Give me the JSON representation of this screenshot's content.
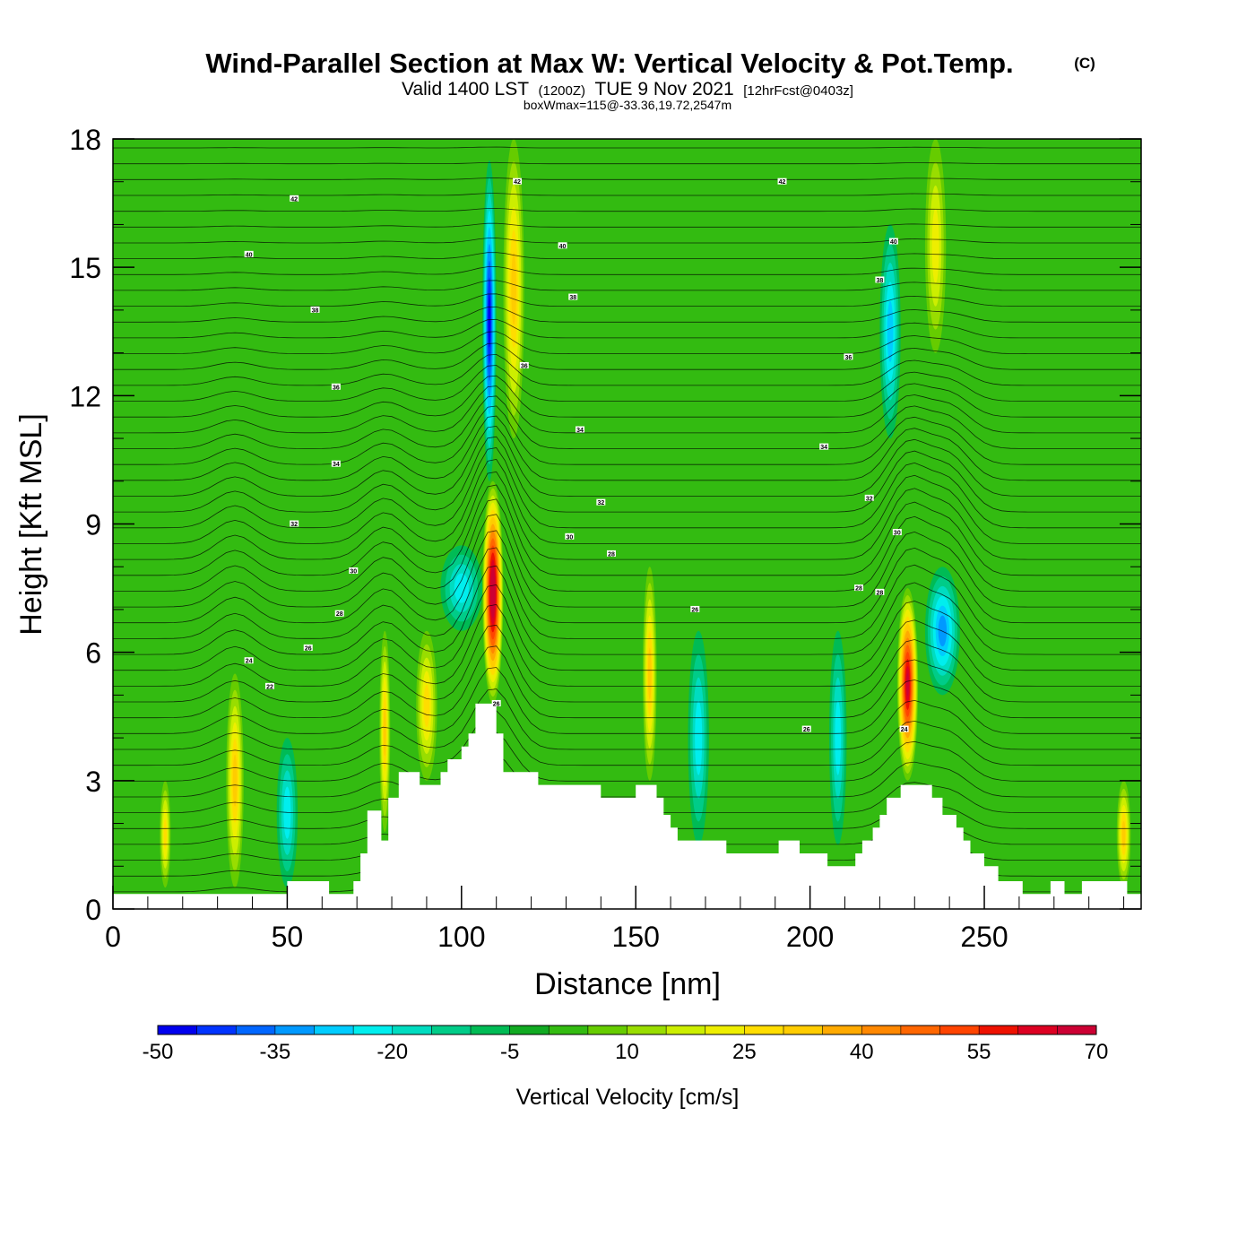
{
  "chart_data": {
    "type": "heatmap",
    "title": "Wind-Parallel Section at Max W: Vertical Velocity & Pot.Temp.",
    "copyright": "(C)",
    "subtitle": {
      "prefix": "Valid 1400 LST",
      "utc": "(1200Z)",
      "date": "TUE 9 Nov 2021",
      "forecast": "[12hrFcst@0403z]"
    },
    "box_info": "boxWmax=115@-33.36,19.72,2547m",
    "xlabel": "Distance [nm]",
    "ylabel": "Height [Kft MSL]",
    "xlim": [
      0,
      295
    ],
    "ylim": [
      0,
      18
    ],
    "x_ticks": [
      0,
      50,
      100,
      150,
      200,
      250
    ],
    "y_ticks": [
      0,
      3,
      6,
      9,
      12,
      15,
      18
    ],
    "background_w": 0,
    "cells": [
      {
        "x": 35,
        "y0": 0.5,
        "y1": 5.5,
        "w": 30,
        "hw": 2.5
      },
      {
        "x": 15,
        "y0": 0.5,
        "y1": 3,
        "w": 25,
        "hw": 1.5
      },
      {
        "x": 50,
        "y0": 0.5,
        "y1": 4,
        "w": -18,
        "hw": 3
      },
      {
        "x": 78,
        "y0": 1.8,
        "y1": 6.5,
        "w": 28,
        "hw": 1.5
      },
      {
        "x": 90,
        "y0": 3,
        "y1": 6.5,
        "w": 25,
        "hw": 3
      },
      {
        "x": 109,
        "y0": 4.8,
        "y1": 10,
        "w": 75,
        "hw": 3
      },
      {
        "x": 115,
        "y0": 11,
        "y1": 18,
        "w": 30,
        "hw": 3
      },
      {
        "x": 108,
        "y0": 10,
        "y1": 17.5,
        "w": -45,
        "hw": 2
      },
      {
        "x": 100,
        "y0": 6.5,
        "y1": 8.5,
        "w": -20,
        "hw": 6
      },
      {
        "x": 154,
        "y0": 3,
        "y1": 8,
        "w": 30,
        "hw": 2
      },
      {
        "x": 168,
        "y0": 1.5,
        "y1": 6.5,
        "w": -20,
        "hw": 3
      },
      {
        "x": 208,
        "y0": 1.5,
        "y1": 6.5,
        "w": -18,
        "hw": 2.5
      },
      {
        "x": 228,
        "y0": 3,
        "y1": 7.5,
        "w": 65,
        "hw": 3
      },
      {
        "x": 238,
        "y0": 5,
        "y1": 8,
        "w": -30,
        "hw": 5
      },
      {
        "x": 223,
        "y0": 11,
        "y1": 16,
        "w": -25,
        "hw": 3
      },
      {
        "x": 236,
        "y0": 13,
        "y1": 18,
        "w": 22,
        "hw": 3
      },
      {
        "x": 290,
        "y0": 0.5,
        "y1": 3,
        "w": 28,
        "hw": 2
      }
    ],
    "terrain": [
      {
        "x": 0,
        "h": 0.35
      },
      {
        "x": 50,
        "h": 0.35
      },
      {
        "x": 50,
        "h": 0.65
      },
      {
        "x": 62,
        "h": 0.65
      },
      {
        "x": 62,
        "h": 0.35
      },
      {
        "x": 69,
        "h": 0.35
      },
      {
        "x": 69,
        "h": 0.65
      },
      {
        "x": 71,
        "h": 0.65
      },
      {
        "x": 71,
        "h": 1.3
      },
      {
        "x": 73,
        "h": 1.3
      },
      {
        "x": 73,
        "h": 2.3
      },
      {
        "x": 77,
        "h": 2.3
      },
      {
        "x": 77,
        "h": 1.6
      },
      {
        "x": 79,
        "h": 1.6
      },
      {
        "x": 79,
        "h": 2.6
      },
      {
        "x": 82,
        "h": 2.6
      },
      {
        "x": 82,
        "h": 3.2
      },
      {
        "x": 88,
        "h": 3.2
      },
      {
        "x": 88,
        "h": 2.9
      },
      {
        "x": 94,
        "h": 2.9
      },
      {
        "x": 94,
        "h": 3.2
      },
      {
        "x": 96,
        "h": 3.2
      },
      {
        "x": 96,
        "h": 3.5
      },
      {
        "x": 100,
        "h": 3.5
      },
      {
        "x": 100,
        "h": 3.8
      },
      {
        "x": 102,
        "h": 3.8
      },
      {
        "x": 102,
        "h": 4.1
      },
      {
        "x": 104,
        "h": 4.1
      },
      {
        "x": 104,
        "h": 4.8
      },
      {
        "x": 110,
        "h": 4.8
      },
      {
        "x": 110,
        "h": 4.1
      },
      {
        "x": 112,
        "h": 4.1
      },
      {
        "x": 112,
        "h": 3.2
      },
      {
        "x": 122,
        "h": 3.2
      },
      {
        "x": 122,
        "h": 2.9
      },
      {
        "x": 140,
        "h": 2.9
      },
      {
        "x": 140,
        "h": 2.6
      },
      {
        "x": 150,
        "h": 2.6
      },
      {
        "x": 150,
        "h": 2.9
      },
      {
        "x": 156,
        "h": 2.9
      },
      {
        "x": 156,
        "h": 2.6
      },
      {
        "x": 158,
        "h": 2.6
      },
      {
        "x": 158,
        "h": 2.2
      },
      {
        "x": 160,
        "h": 2.2
      },
      {
        "x": 160,
        "h": 1.9
      },
      {
        "x": 162,
        "h": 1.9
      },
      {
        "x": 162,
        "h": 1.6
      },
      {
        "x": 176,
        "h": 1.6
      },
      {
        "x": 176,
        "h": 1.3
      },
      {
        "x": 191,
        "h": 1.3
      },
      {
        "x": 191,
        "h": 1.6
      },
      {
        "x": 197,
        "h": 1.6
      },
      {
        "x": 197,
        "h": 1.3
      },
      {
        "x": 205,
        "h": 1.3
      },
      {
        "x": 205,
        "h": 1.0
      },
      {
        "x": 213,
        "h": 1.0
      },
      {
        "x": 213,
        "h": 1.3
      },
      {
        "x": 215,
        "h": 1.3
      },
      {
        "x": 215,
        "h": 1.6
      },
      {
        "x": 218,
        "h": 1.6
      },
      {
        "x": 218,
        "h": 1.9
      },
      {
        "x": 220,
        "h": 1.9
      },
      {
        "x": 220,
        "h": 2.2
      },
      {
        "x": 222,
        "h": 2.2
      },
      {
        "x": 222,
        "h": 2.6
      },
      {
        "x": 226,
        "h": 2.6
      },
      {
        "x": 226,
        "h": 2.9
      },
      {
        "x": 235,
        "h": 2.9
      },
      {
        "x": 235,
        "h": 2.6
      },
      {
        "x": 238,
        "h": 2.6
      },
      {
        "x": 238,
        "h": 2.2
      },
      {
        "x": 242,
        "h": 2.2
      },
      {
        "x": 242,
        "h": 1.9
      },
      {
        "x": 244,
        "h": 1.9
      },
      {
        "x": 244,
        "h": 1.6
      },
      {
        "x": 246,
        "h": 1.6
      },
      {
        "x": 246,
        "h": 1.3
      },
      {
        "x": 250,
        "h": 1.3
      },
      {
        "x": 250,
        "h": 1.0
      },
      {
        "x": 254,
        "h": 1.0
      },
      {
        "x": 254,
        "h": 0.65
      },
      {
        "x": 261,
        "h": 0.65
      },
      {
        "x": 261,
        "h": 0.35
      },
      {
        "x": 269,
        "h": 0.35
      },
      {
        "x": 269,
        "h": 0.65
      },
      {
        "x": 273,
        "h": 0.65
      },
      {
        "x": 273,
        "h": 0.35
      },
      {
        "x": 278,
        "h": 0.35
      },
      {
        "x": 278,
        "h": 0.65
      },
      {
        "x": 291,
        "h": 0.65
      },
      {
        "x": 291,
        "h": 0.35
      },
      {
        "x": 295,
        "h": 0.35
      }
    ],
    "contour_labels": [
      {
        "x": 52,
        "y": 16.6,
        "text": "42"
      },
      {
        "x": 39,
        "y": 15.3,
        "text": "40"
      },
      {
        "x": 58,
        "y": 14.0,
        "text": "38"
      },
      {
        "x": 64,
        "y": 12.2,
        "text": "36"
      },
      {
        "x": 64,
        "y": 10.4,
        "text": "34"
      },
      {
        "x": 52,
        "y": 9.0,
        "text": "32"
      },
      {
        "x": 69,
        "y": 7.9,
        "text": "30"
      },
      {
        "x": 65,
        "y": 6.9,
        "text": "28"
      },
      {
        "x": 56,
        "y": 6.1,
        "text": "26"
      },
      {
        "x": 39,
        "y": 5.8,
        "text": "24"
      },
      {
        "x": 45,
        "y": 5.2,
        "text": "22"
      },
      {
        "x": 116,
        "y": 17.0,
        "text": "42"
      },
      {
        "x": 129,
        "y": 15.5,
        "text": "40"
      },
      {
        "x": 132,
        "y": 14.3,
        "text": "38"
      },
      {
        "x": 118,
        "y": 12.7,
        "text": "36"
      },
      {
        "x": 134,
        "y": 11.2,
        "text": "34"
      },
      {
        "x": 140,
        "y": 9.5,
        "text": "32"
      },
      {
        "x": 131,
        "y": 8.7,
        "text": "30"
      },
      {
        "x": 143,
        "y": 8.3,
        "text": "28"
      },
      {
        "x": 110,
        "y": 4.8,
        "text": "26"
      },
      {
        "x": 167,
        "y": 7.0,
        "text": "26"
      },
      {
        "x": 192,
        "y": 17.0,
        "text": "42"
      },
      {
        "x": 224,
        "y": 15.6,
        "text": "40"
      },
      {
        "x": 220,
        "y": 14.7,
        "text": "38"
      },
      {
        "x": 211,
        "y": 12.9,
        "text": "36"
      },
      {
        "x": 204,
        "y": 10.8,
        "text": "34"
      },
      {
        "x": 217,
        "y": 9.6,
        "text": "32"
      },
      {
        "x": 225,
        "y": 8.8,
        "text": "30"
      },
      {
        "x": 214,
        "y": 7.5,
        "text": "28"
      },
      {
        "x": 220,
        "y": 7.4,
        "text": "28"
      },
      {
        "x": 199,
        "y": 4.2,
        "text": "26"
      },
      {
        "x": 227,
        "y": 4.2,
        "text": "24"
      }
    ],
    "colorbar": {
      "label": "Vertical Velocity [cm/s]",
      "min": -50,
      "step": 5,
      "tick_labels": [
        "-50",
        "-35",
        "-20",
        "-5",
        "10",
        "25",
        "40",
        "55",
        "70"
      ],
      "colors": [
        "#0000ee",
        "#0033ff",
        "#0066ff",
        "#0099ff",
        "#00ccff",
        "#00eeee",
        "#00dcc0",
        "#00cc88",
        "#00bb55",
        "#11aa22",
        "#33bb11",
        "#66cc00",
        "#99dd00",
        "#ccee00",
        "#eeee00",
        "#ffdd00",
        "#ffcc00",
        "#ffaa00",
        "#ff8800",
        "#ff6600",
        "#ff4400",
        "#ee1100",
        "#dd0022",
        "#cc0033"
      ]
    }
  }
}
